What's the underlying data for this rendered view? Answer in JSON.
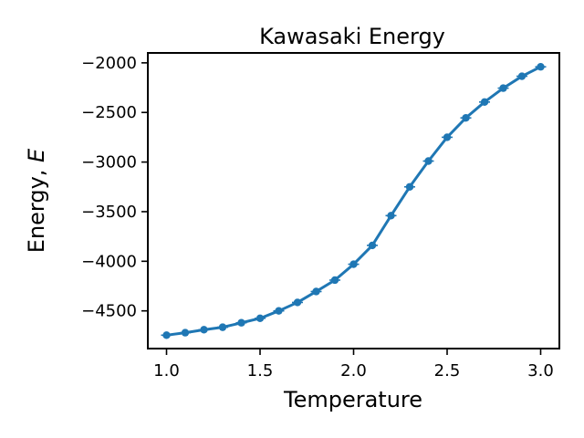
{
  "chart_data": {
    "type": "line",
    "title": "Kawasaki Energy",
    "xlabel": "Temperature",
    "ylabel_prefix": "Energy, ",
    "ylabel_var": "E",
    "xlim": [
      0.9,
      3.1
    ],
    "ylim": [
      -4880,
      -1900
    ],
    "xticks": [
      1.0,
      1.5,
      2.0,
      2.5,
      3.0
    ],
    "xtick_labels": [
      "1.0",
      "1.5",
      "2.0",
      "2.5",
      "3.0"
    ],
    "yticks": [
      -4500,
      -4000,
      -3500,
      -3000,
      -2500,
      -2000
    ],
    "ytick_labels": [
      "−4500",
      "−4000",
      "−3500",
      "−3000",
      "−2500",
      "−2000"
    ],
    "grid": false,
    "series": [
      {
        "color": "#1f77b4",
        "marker": "circle",
        "error_bars": true,
        "x": [
          1.0,
          1.1,
          1.2,
          1.3,
          1.4,
          1.5,
          1.6,
          1.7,
          1.8,
          1.9,
          2.0,
          2.1,
          2.2,
          2.3,
          2.4,
          2.5,
          2.6,
          2.7,
          2.8,
          2.9,
          3.0
        ],
        "y": [
          -4745,
          -4720,
          -4690,
          -4665,
          -4620,
          -4575,
          -4500,
          -4415,
          -4305,
          -4190,
          -4030,
          -3840,
          -3540,
          -3250,
          -2990,
          -2750,
          -2555,
          -2395,
          -2255,
          -2135,
          -2040
        ]
      }
    ]
  }
}
